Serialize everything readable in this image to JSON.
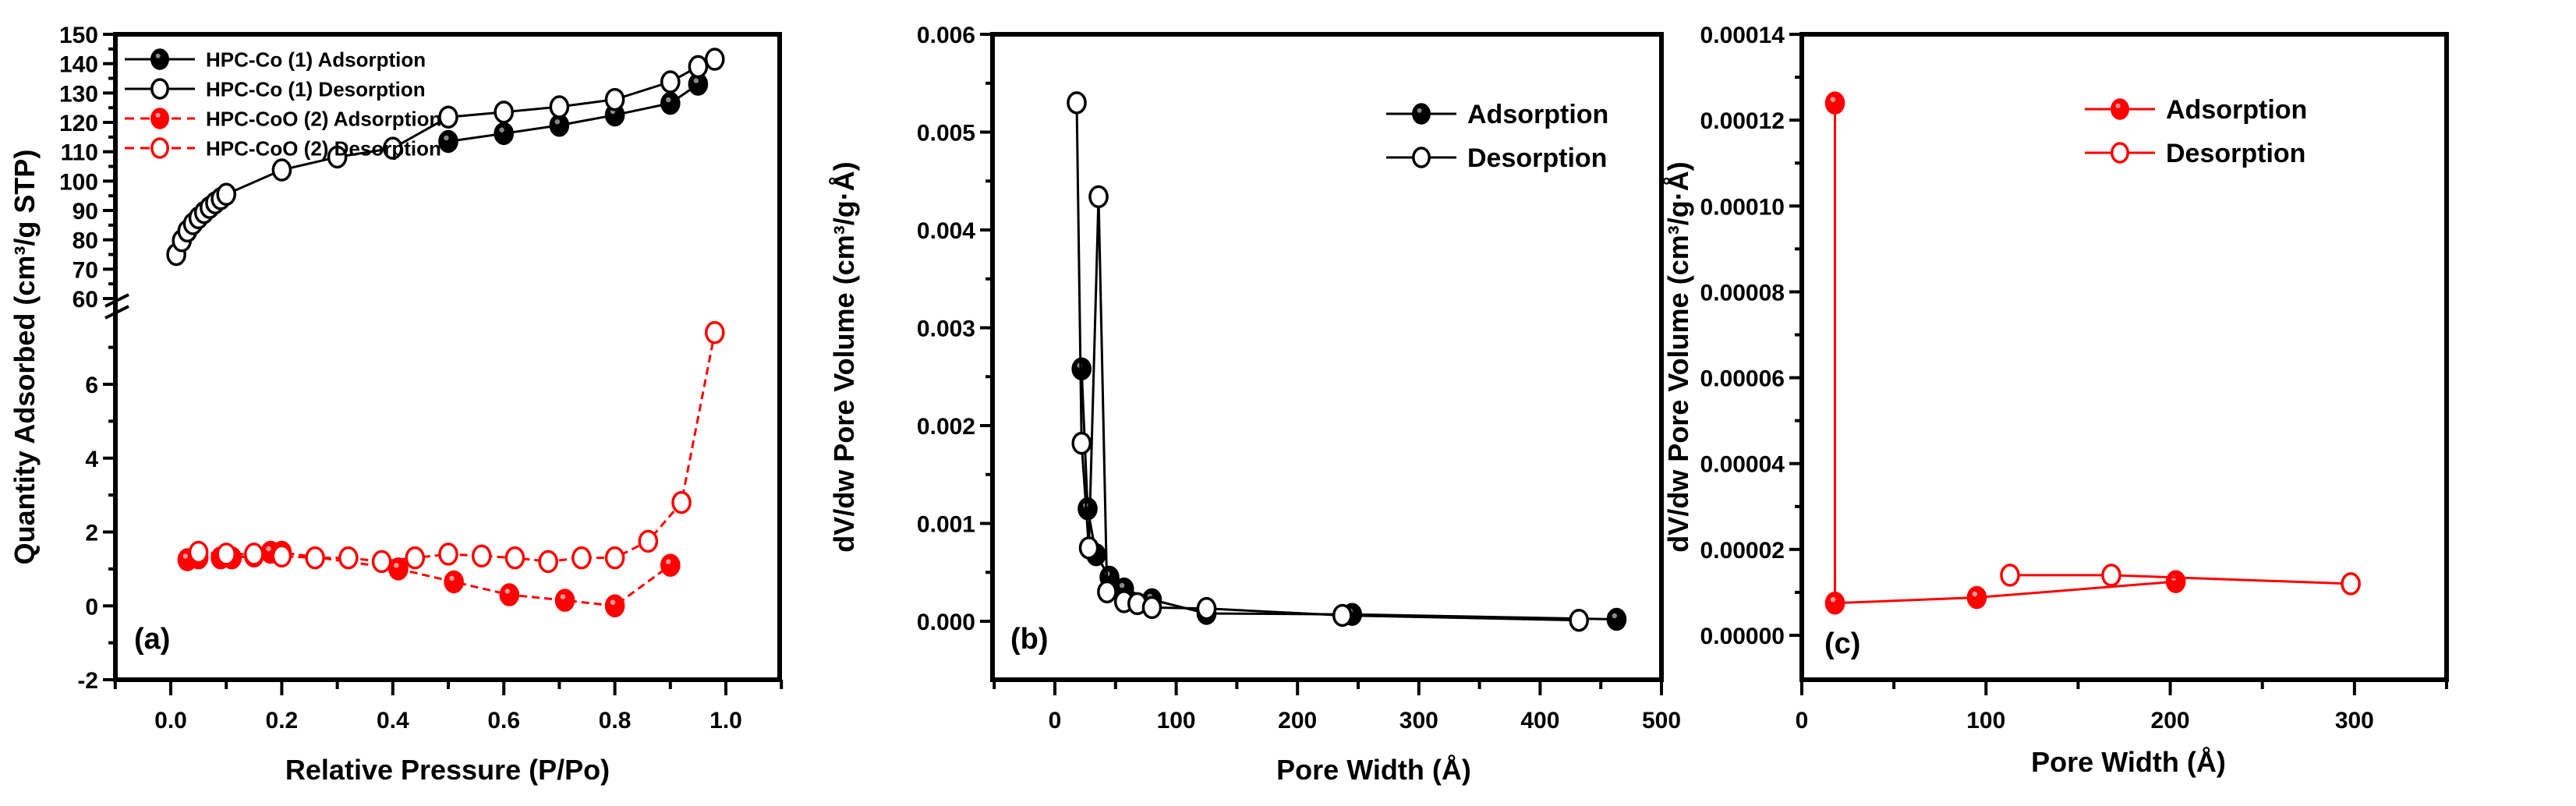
{
  "chart_data": [
    {
      "panel": "(a)",
      "type": "line",
      "xlabel": "Relative Pressure (P/Po)",
      "ylabel": "Quantity Adsorbed (cm³/g STP)",
      "xlim": [
        -0.1,
        1.1
      ],
      "ylim_upper_segment": [
        60,
        150
      ],
      "ylim_lower_segment": [
        -2,
        7.5
      ],
      "axis_break": "between 7.5 and 60 on y-axis",
      "xticks": [
        "0.0",
        "0.2",
        "0.4",
        "0.6",
        "0.8",
        "1.0"
      ],
      "yticks_upper": [
        "60",
        "70",
        "80",
        "90",
        "100",
        "110",
        "120",
        "130",
        "140",
        "150"
      ],
      "yticks_lower": [
        "-2",
        "0",
        "2",
        "4",
        "6"
      ],
      "grid": false,
      "legend_position": "upper left",
      "series": [
        {
          "name": "HPC-Co (1)  Adsorption",
          "color": "#000000",
          "marker": "filled-circle",
          "line": "solid",
          "x": [
            0.5,
            0.6,
            0.7,
            0.8,
            0.9,
            0.95
          ],
          "y": [
            113.5,
            116.2,
            119.0,
            122.5,
            126.5,
            133.0
          ]
        },
        {
          "name": "HPC-Co (1)  Desorption",
          "color": "#000000",
          "marker": "open-circle",
          "line": "solid",
          "x": [
            0.01,
            0.02,
            0.03,
            0.04,
            0.05,
            0.06,
            0.07,
            0.08,
            0.09,
            0.1,
            0.2,
            0.3,
            0.4,
            0.5,
            0.6,
            0.7,
            0.8,
            0.9,
            0.95,
            0.98
          ],
          "y": [
            75.0,
            79.7,
            83.0,
            85.5,
            87.5,
            89.3,
            91.0,
            92.6,
            94.0,
            95.5,
            103.8,
            108.2,
            111.2,
            121.8,
            123.5,
            125.3,
            127.8,
            133.8,
            139.0,
            141.5
          ]
        },
        {
          "name": "HPC-CoO (2)  Adsorption",
          "color": "#ff0000",
          "marker": "filled-circle",
          "line": "dashed",
          "x": [
            0.03,
            0.05,
            0.09,
            0.11,
            0.15,
            0.18,
            0.2,
            0.41,
            0.51,
            0.61,
            0.71,
            0.8,
            0.9
          ],
          "y": [
            1.25,
            1.3,
            1.3,
            1.3,
            1.35,
            1.45,
            1.45,
            1.0,
            0.65,
            0.3,
            0.15,
            0.0,
            1.1
          ]
        },
        {
          "name": "HPC-CoO (2) Desorption",
          "color": "#ff0000",
          "marker": "open-circle",
          "line": "dashed",
          "x": [
            0.05,
            0.1,
            0.15,
            0.2,
            0.26,
            0.32,
            0.38,
            0.44,
            0.5,
            0.56,
            0.62,
            0.68,
            0.74,
            0.8,
            0.86,
            0.92,
            0.98
          ],
          "y": [
            1.45,
            1.4,
            1.4,
            1.35,
            1.3,
            1.3,
            1.2,
            1.3,
            1.4,
            1.35,
            1.3,
            1.2,
            1.3,
            1.3,
            1.75,
            2.8,
            7.4
          ]
        }
      ],
      "annotations": [
        "(a)"
      ]
    },
    {
      "panel": "(b)",
      "type": "line",
      "xlabel": "Pore Width (Å)",
      "ylabel": "dV/dw Pore Volume (cm³/g·Å)",
      "xlim": [
        -50,
        500
      ],
      "ylim": [
        -0.0005,
        0.006
      ],
      "xticks": [
        "0",
        "100",
        "200",
        "300",
        "400",
        "500"
      ],
      "yticks": [
        "0.000",
        "0.001",
        "0.002",
        "0.003",
        "0.004",
        "0.005",
        "0.006"
      ],
      "grid": false,
      "legend_position": "upper right",
      "series": [
        {
          "name": "Adsorption",
          "color": "#000000",
          "marker": "filled-circle",
          "line": "solid",
          "x": [
            22,
            27,
            34,
            45,
            57,
            80,
            125,
            245,
            463
          ],
          "y": [
            0.00258,
            0.00115,
            0.00068,
            0.00045,
            0.00033,
            0.00022,
            8e-05,
            7e-05,
            2e-05
          ]
        },
        {
          "name": "Desorption",
          "color": "#000000",
          "marker": "open-circle",
          "line": "solid",
          "x": [
            18,
            22,
            28,
            36,
            43,
            57,
            68,
            80,
            125,
            237,
            432
          ],
          "y": [
            0.0053,
            0.00182,
            0.00075,
            0.00434,
            0.0003,
            0.0002,
            0.00018,
            0.00014,
            0.00013,
            6e-05,
            1e-05
          ]
        }
      ],
      "annotations": [
        "(b)"
      ]
    },
    {
      "panel": "(c)",
      "type": "line",
      "xlabel": "Pore Width (Å)",
      "ylabel": "dV/dw Pore Volume (cm³/g·Å)",
      "xlim": [
        0,
        350
      ],
      "ylim": [
        -1e-05,
        0.00014
      ],
      "xticks": [
        "0",
        "100",
        "200",
        "300"
      ],
      "yticks": [
        "0.00000",
        "0.00002",
        "0.00004",
        "0.00006",
        "0.00008",
        "0.00010",
        "0.00012",
        "0.00014"
      ],
      "grid": false,
      "legend_position": "upper right",
      "series": [
        {
          "name": "Adsorption",
          "color": "#ff0000",
          "marker": "filled-circle",
          "line": "solid",
          "x": [
            18,
            18,
            95,
            203
          ],
          "y": [
            0.000124,
            7.5e-06,
            8.8e-06,
            1.25e-05
          ]
        },
        {
          "name": "Desorption",
          "color": "#ff0000",
          "marker": "open-circle",
          "line": "solid",
          "x": [
            113,
            168,
            298
          ],
          "y": [
            1.4e-05,
            1.4e-05,
            1.2e-05
          ]
        }
      ],
      "annotations": [
        "(c)"
      ]
    }
  ]
}
